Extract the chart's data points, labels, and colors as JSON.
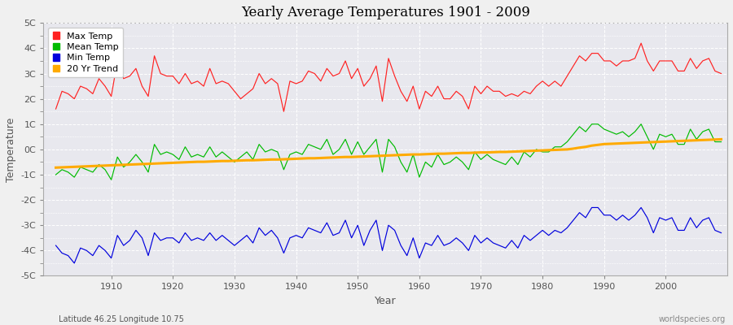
{
  "title": "Yearly Average Temperatures 1901 - 2009",
  "xlabel": "Year",
  "ylabel": "Temperature",
  "bottom_left": "Latitude 46.25 Longitude 10.75",
  "bottom_right": "worldspecies.org",
  "ylim": [
    -5,
    5
  ],
  "yticks": [
    -5,
    -4,
    -3,
    -2,
    -1,
    0,
    1,
    2,
    3,
    4,
    5
  ],
  "ytick_labels": [
    "-5C",
    "-4C",
    "-3C",
    "-2C",
    "-1C",
    "0C",
    "1C",
    "2C",
    "3C",
    "4C",
    "5C"
  ],
  "year_start": 1901,
  "year_end": 2009,
  "fig_bg_color": "#f0f0f0",
  "plot_bg_color": "#e8e8ee",
  "grid_color": "#ffffff",
  "max_temp_color": "#ff2222",
  "mean_temp_color": "#00bb00",
  "min_temp_color": "#0000dd",
  "trend_color": "#ffaa00",
  "legend_labels": [
    "Max Temp",
    "Mean Temp",
    "Min Temp",
    "20 Yr Trend"
  ],
  "max_temp": [
    1.6,
    2.3,
    2.2,
    2.0,
    2.5,
    2.4,
    2.2,
    2.8,
    2.5,
    2.1,
    3.5,
    2.8,
    2.9,
    3.2,
    2.5,
    2.1,
    3.7,
    3.0,
    2.9,
    2.9,
    2.6,
    3.0,
    2.6,
    2.7,
    2.5,
    3.2,
    2.6,
    2.7,
    2.6,
    2.3,
    2.0,
    2.2,
    2.4,
    3.0,
    2.6,
    2.8,
    2.6,
    1.5,
    2.7,
    2.6,
    2.7,
    3.1,
    3.0,
    2.7,
    3.2,
    2.9,
    3.0,
    3.5,
    2.8,
    3.2,
    2.5,
    2.8,
    3.3,
    1.9,
    3.6,
    2.9,
    2.3,
    1.9,
    2.5,
    1.6,
    2.3,
    2.1,
    2.5,
    2.0,
    2.0,
    2.3,
    2.1,
    1.6,
    2.5,
    2.2,
    2.5,
    2.3,
    2.3,
    2.1,
    2.2,
    2.1,
    2.3,
    2.2,
    2.5,
    2.7,
    2.5,
    2.7,
    2.5,
    2.9,
    3.3,
    3.7,
    3.5,
    3.8,
    3.8,
    3.5,
    3.5,
    3.3,
    3.5,
    3.5,
    3.6,
    4.2,
    3.5,
    3.1,
    3.5,
    3.5,
    3.5,
    3.1,
    3.1,
    3.6,
    3.2,
    3.5,
    3.6,
    3.1,
    3.0
  ],
  "mean_temp": [
    -1.0,
    -0.8,
    -0.9,
    -1.1,
    -0.7,
    -0.8,
    -0.9,
    -0.6,
    -0.8,
    -1.2,
    -0.3,
    -0.7,
    -0.5,
    -0.2,
    -0.5,
    -0.9,
    0.2,
    -0.2,
    -0.1,
    -0.2,
    -0.4,
    0.1,
    -0.3,
    -0.2,
    -0.3,
    0.1,
    -0.3,
    -0.1,
    -0.3,
    -0.5,
    -0.3,
    -0.1,
    -0.4,
    0.2,
    -0.1,
    0.0,
    -0.1,
    -0.8,
    -0.2,
    -0.1,
    -0.2,
    0.2,
    0.1,
    0.0,
    0.4,
    -0.2,
    0.0,
    0.4,
    -0.2,
    0.3,
    -0.2,
    0.1,
    0.4,
    -0.9,
    0.4,
    0.1,
    -0.5,
    -0.9,
    -0.2,
    -1.1,
    -0.5,
    -0.7,
    -0.2,
    -0.6,
    -0.5,
    -0.3,
    -0.5,
    -0.8,
    -0.1,
    -0.4,
    -0.2,
    -0.4,
    -0.5,
    -0.6,
    -0.3,
    -0.6,
    -0.1,
    -0.3,
    0.0,
    -0.1,
    -0.1,
    0.1,
    0.1,
    0.3,
    0.6,
    0.9,
    0.7,
    1.0,
    1.0,
    0.8,
    0.7,
    0.6,
    0.7,
    0.5,
    0.7,
    1.0,
    0.5,
    0.0,
    0.6,
    0.5,
    0.6,
    0.2,
    0.2,
    0.8,
    0.4,
    0.7,
    0.8,
    0.3,
    0.3
  ],
  "min_temp": [
    -3.8,
    -4.1,
    -4.2,
    -4.5,
    -3.9,
    -4.0,
    -4.2,
    -3.8,
    -4.0,
    -4.3,
    -3.4,
    -3.8,
    -3.6,
    -3.2,
    -3.5,
    -4.2,
    -3.3,
    -3.6,
    -3.5,
    -3.5,
    -3.7,
    -3.3,
    -3.6,
    -3.5,
    -3.6,
    -3.3,
    -3.6,
    -3.4,
    -3.6,
    -3.8,
    -3.6,
    -3.4,
    -3.7,
    -3.1,
    -3.4,
    -3.2,
    -3.5,
    -4.1,
    -3.5,
    -3.4,
    -3.5,
    -3.1,
    -3.2,
    -3.3,
    -2.9,
    -3.4,
    -3.3,
    -2.8,
    -3.5,
    -3.0,
    -3.8,
    -3.2,
    -2.8,
    -4.0,
    -3.0,
    -3.2,
    -3.8,
    -4.2,
    -3.5,
    -4.3,
    -3.7,
    -3.8,
    -3.4,
    -3.8,
    -3.7,
    -3.5,
    -3.7,
    -4.0,
    -3.4,
    -3.7,
    -3.5,
    -3.7,
    -3.8,
    -3.9,
    -3.6,
    -3.9,
    -3.4,
    -3.6,
    -3.4,
    -3.2,
    -3.4,
    -3.2,
    -3.3,
    -3.1,
    -2.8,
    -2.5,
    -2.7,
    -2.3,
    -2.3,
    -2.6,
    -2.6,
    -2.8,
    -2.6,
    -2.8,
    -2.6,
    -2.3,
    -2.7,
    -3.3,
    -2.7,
    -2.8,
    -2.7,
    -3.2,
    -3.2,
    -2.7,
    -3.1,
    -2.8,
    -2.7,
    -3.2,
    -3.3
  ],
  "trend": [
    -0.72,
    -0.71,
    -0.7,
    -0.69,
    -0.68,
    -0.67,
    -0.66,
    -0.65,
    -0.64,
    -0.63,
    -0.62,
    -0.61,
    -0.6,
    -0.59,
    -0.58,
    -0.57,
    -0.56,
    -0.55,
    -0.54,
    -0.53,
    -0.52,
    -0.51,
    -0.5,
    -0.49,
    -0.49,
    -0.48,
    -0.47,
    -0.46,
    -0.46,
    -0.45,
    -0.44,
    -0.43,
    -0.43,
    -0.42,
    -0.41,
    -0.4,
    -0.4,
    -0.39,
    -0.38,
    -0.37,
    -0.36,
    -0.35,
    -0.35,
    -0.34,
    -0.33,
    -0.32,
    -0.31,
    -0.3,
    -0.3,
    -0.29,
    -0.28,
    -0.27,
    -0.26,
    -0.25,
    -0.24,
    -0.23,
    -0.22,
    -0.21,
    -0.2,
    -0.2,
    -0.19,
    -0.18,
    -0.17,
    -0.17,
    -0.16,
    -0.15,
    -0.14,
    -0.14,
    -0.13,
    -0.12,
    -0.12,
    -0.11,
    -0.1,
    -0.1,
    -0.09,
    -0.08,
    -0.07,
    -0.06,
    -0.05,
    -0.04,
    -0.03,
    -0.02,
    -0.01,
    0.0,
    0.03,
    0.07,
    0.1,
    0.15,
    0.18,
    0.21,
    0.22,
    0.23,
    0.24,
    0.25,
    0.26,
    0.27,
    0.28,
    0.29,
    0.3,
    0.31,
    0.32,
    0.33,
    0.34,
    0.35,
    0.36,
    0.37,
    0.38,
    0.39,
    0.4
  ]
}
